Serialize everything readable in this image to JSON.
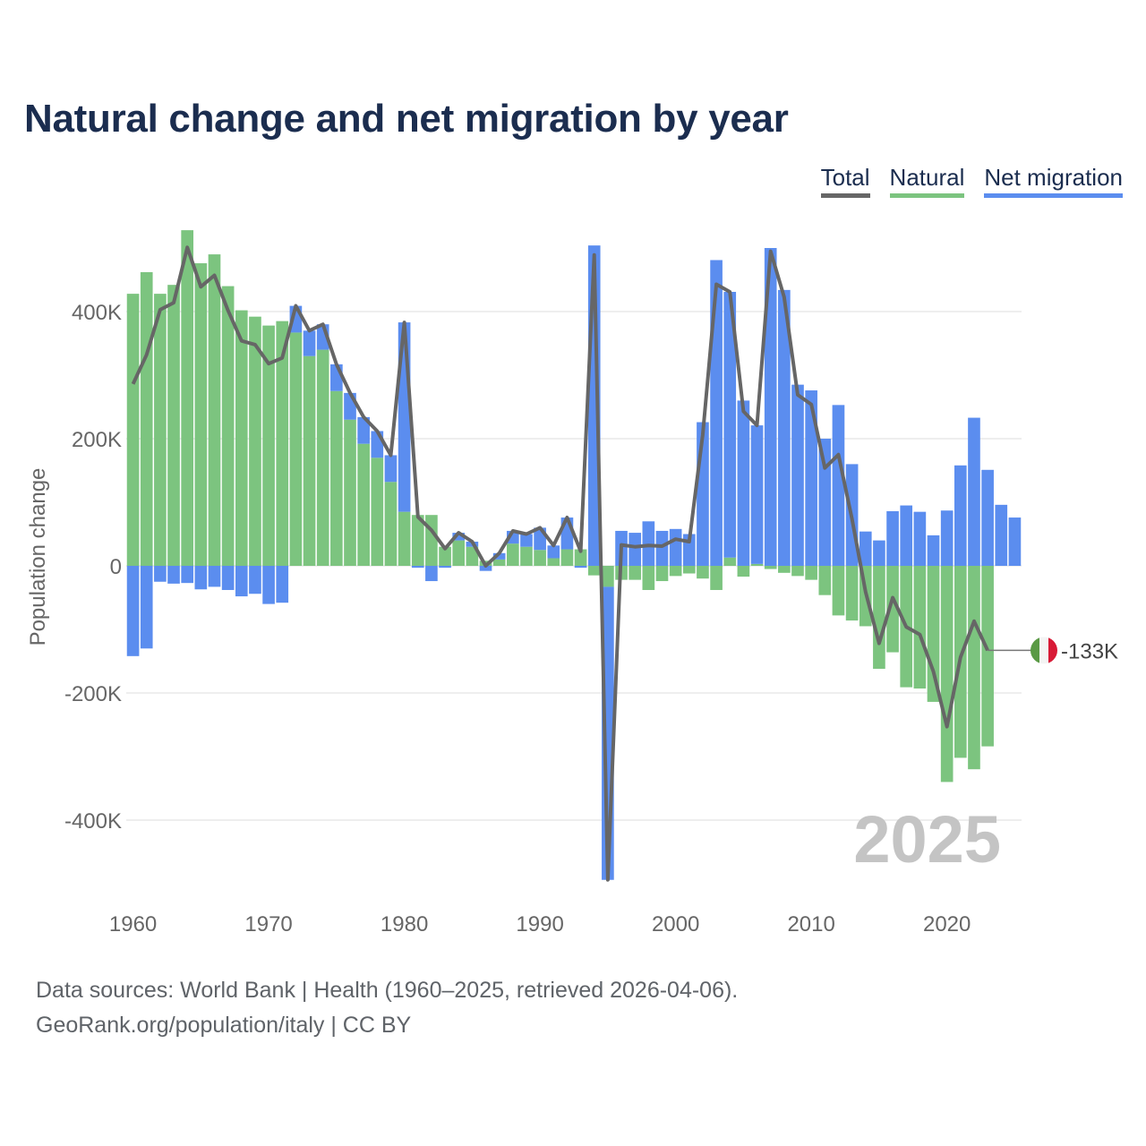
{
  "title": "Natural change and net migration by year",
  "legend": [
    {
      "label": "Total",
      "color": "#666666"
    },
    {
      "label": "Natural",
      "color": "#7cc47f"
    },
    {
      "label": "Net migration",
      "color": "#5b8def"
    }
  ],
  "source": {
    "line1": "Data sources: World Bank | Health (1960–2025, retrieved 2026-04-06).",
    "line2": "GeoRank.org/population/italy | CC BY"
  },
  "chart_data": {
    "type": "bar",
    "stacked": true,
    "ylabel": "Population change",
    "ylim": [
      -500000,
      560000
    ],
    "yticks": [
      {
        "value": 400000,
        "label": "400K"
      },
      {
        "value": 200000,
        "label": "200K"
      },
      {
        "value": 0,
        "label": "0"
      },
      {
        "value": -200000,
        "label": "-200K"
      },
      {
        "value": -400000,
        "label": "-400K"
      }
    ],
    "xticks": [
      1960,
      1970,
      1980,
      1990,
      2000,
      2010,
      2020
    ],
    "watermark_year": "2025",
    "end_label": "-133K",
    "colors": {
      "natural": "#7cc47f",
      "migration": "#5b8def",
      "total": "#666666"
    },
    "years": [
      1960,
      1961,
      1962,
      1963,
      1964,
      1965,
      1966,
      1967,
      1968,
      1969,
      1970,
      1971,
      1972,
      1973,
      1974,
      1975,
      1976,
      1977,
      1978,
      1979,
      1980,
      1981,
      1982,
      1983,
      1984,
      1985,
      1986,
      1987,
      1988,
      1989,
      1990,
      1991,
      1992,
      1993,
      1994,
      1995,
      1996,
      1997,
      1998,
      1999,
      2000,
      2001,
      2002,
      2003,
      2004,
      2005,
      2006,
      2007,
      2008,
      2009,
      2010,
      2011,
      2012,
      2013,
      2014,
      2015,
      2016,
      2017,
      2018,
      2019,
      2020,
      2021,
      2022,
      2023,
      2024,
      2025
    ],
    "series": [
      {
        "name": "Natural",
        "values": [
          428000,
          462000,
          428000,
          442000,
          528000,
          476000,
          490000,
          440000,
          402000,
          392000,
          378000,
          385000,
          367000,
          330000,
          340000,
          275000,
          230000,
          192000,
          170000,
          132000,
          85000,
          80000,
          80000,
          30000,
          40000,
          30000,
          8000,
          10000,
          35000,
          30000,
          25000,
          12000,
          26000,
          26000,
          -15000,
          -33000,
          -22000,
          -22000,
          -38000,
          -24000,
          -16000,
          -12000,
          -20000,
          -38000,
          13000,
          -17000,
          3000,
          -5000,
          -11000,
          -16000,
          -22000,
          -46000,
          -78000,
          -86000,
          -95000,
          -162000,
          -136000,
          -191000,
          -193000,
          -214000,
          -340000,
          -302000,
          -320000,
          -284000,
          null,
          null
        ]
      },
      {
        "name": "Net migration",
        "values": [
          -142000,
          -130000,
          -25000,
          -28000,
          -27000,
          -37000,
          -33000,
          -38000,
          -48000,
          -44000,
          -60000,
          -58000,
          42000,
          40000,
          40000,
          42000,
          42000,
          42000,
          42000,
          42000,
          298000,
          -3000,
          -24000,
          -3000,
          12000,
          8000,
          -8000,
          10000,
          20000,
          20000,
          35000,
          20000,
          50000,
          -3000,
          504000,
          -461000,
          55000,
          52000,
          70000,
          55000,
          58000,
          50000,
          226000,
          481000,
          418000,
          260000,
          218000,
          500000,
          434000,
          285000,
          276000,
          200000,
          253000,
          160000,
          54000,
          40000,
          86000,
          95000,
          85000,
          48000,
          87000,
          158000,
          233000,
          151000,
          96000,
          76000
        ]
      },
      {
        "name": "Total",
        "values": [
          286000,
          332000,
          403000,
          414000,
          501000,
          439000,
          457000,
          402000,
          354000,
          348000,
          318000,
          327000,
          409000,
          370000,
          380000,
          317000,
          272000,
          234000,
          212000,
          174000,
          383000,
          77000,
          56000,
          27000,
          52000,
          38000,
          0,
          20000,
          55000,
          50000,
          60000,
          32000,
          76000,
          23000,
          489000,
          -494000,
          33000,
          30000,
          32000,
          31000,
          42000,
          38000,
          206000,
          443000,
          431000,
          243000,
          221000,
          495000,
          423000,
          269000,
          254000,
          154000,
          175000,
          74000,
          -41000,
          -122000,
          -50000,
          -96000,
          -108000,
          -166000,
          -253000,
          -144000,
          -87000,
          -133000,
          null,
          null
        ]
      }
    ]
  }
}
